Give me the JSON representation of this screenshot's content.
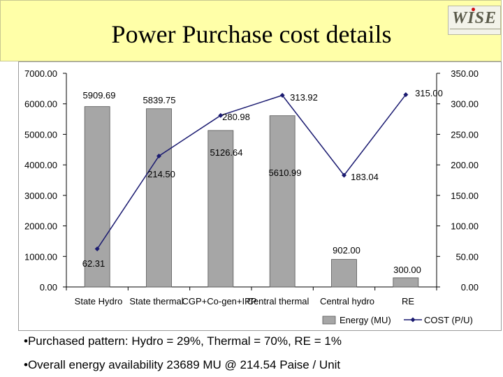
{
  "header": {
    "title": "Power Purchase cost details"
  },
  "logo": {
    "icon": "wise-logo-icon",
    "color": "#5a5a4a"
  },
  "chart_data": {
    "type": "bar",
    "categories": [
      "State Hydro",
      "State thermal",
      "CGP+Co-gen+IPP",
      "Central thermal",
      "Central hydro",
      "RE"
    ],
    "series": [
      {
        "name": "Energy (MU)",
        "type": "bar",
        "axis": "left",
        "color": "#a6a6a6",
        "values": [
          5909.69,
          5839.75,
          5126.64,
          5610.99,
          902.0,
          300.0
        ],
        "labels": [
          "5909.69",
          "5839.75",
          "5126.64",
          "5610.99",
          "902.00",
          "300.00"
        ]
      },
      {
        "name": "COST (P/U)",
        "type": "line",
        "axis": "right",
        "color": "#1a1a70",
        "values": [
          62.31,
          214.5,
          280.98,
          313.92,
          183.04,
          315.0
        ],
        "labels": [
          "62.31",
          "214.50",
          "280.98",
          "313.92",
          "183.04",
          "315.00"
        ]
      }
    ],
    "left_axis": {
      "ylim": [
        0,
        7000
      ],
      "ticks": [
        "0.00",
        "1000.00",
        "2000.00",
        "3000.00",
        "4000.00",
        "5000.00",
        "6000.00",
        "7000.00"
      ]
    },
    "right_axis": {
      "ylim": [
        0,
        350
      ],
      "ticks": [
        "0.00",
        "50.00",
        "100.00",
        "150.00",
        "200.00",
        "250.00",
        "300.00",
        "350.00"
      ]
    },
    "legend": "bottom-right",
    "grid": false
  },
  "bullets": [
    "•Purchased pattern: Hydro = 29%, Thermal = 70%, RE = 1%",
    "•Overall energy availability 23689 MU @ 214.54 Paise / Unit"
  ]
}
